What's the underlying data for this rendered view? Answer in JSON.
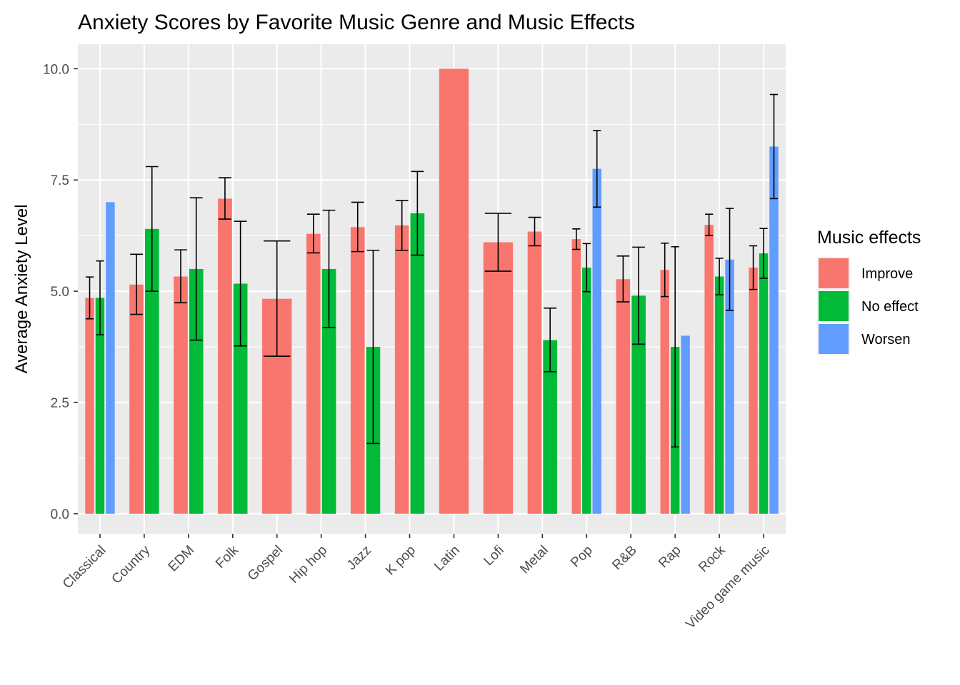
{
  "chart_data": {
    "type": "bar",
    "title": "Anxiety Scores by Favorite Music Genre and Music Effects",
    "xlabel": "",
    "ylabel": "Average Anxiety Level",
    "ylim": [
      -0.45,
      10.55
    ],
    "yticks": [
      0,
      2.5,
      5,
      7.5,
      10
    ],
    "ytick_labels": [
      "0.0",
      "2.5",
      "5.0",
      "7.5",
      "10.0"
    ],
    "grid": true,
    "legend": {
      "title": "Music effects",
      "placement": "right"
    },
    "categories": [
      "Classical",
      "Country",
      "EDM",
      "Folk",
      "Gospel",
      "Hip hop",
      "Jazz",
      "K pop",
      "Latin",
      "Lofi",
      "Metal",
      "Pop",
      "R&B",
      "Rap",
      "Rock",
      "Video game music"
    ],
    "series": [
      {
        "name": "Improve",
        "color": "#F8766D",
        "values": [
          4.85,
          5.15,
          5.33,
          7.08,
          4.83,
          6.29,
          6.44,
          6.48,
          10.0,
          6.1,
          6.34,
          6.17,
          5.27,
          5.48,
          6.49,
          5.53
        ],
        "error_low": [
          4.38,
          4.48,
          4.74,
          6.62,
          3.54,
          5.86,
          5.89,
          5.92,
          null,
          5.45,
          6.02,
          5.94,
          4.76,
          4.88,
          6.25,
          5.04
        ],
        "error_high": [
          5.32,
          5.83,
          5.93,
          7.55,
          6.13,
          6.73,
          7.0,
          7.04,
          null,
          6.75,
          6.66,
          6.4,
          5.79,
          6.08,
          6.73,
          6.02
        ]
      },
      {
        "name": "No effect",
        "color": "#00BA38",
        "values": [
          4.85,
          6.4,
          5.5,
          5.17,
          null,
          5.5,
          3.75,
          6.75,
          null,
          null,
          3.9,
          5.53,
          4.9,
          3.75,
          5.33,
          5.85
        ],
        "error_low": [
          4.02,
          5.0,
          3.9,
          3.77,
          null,
          4.18,
          1.58,
          5.81,
          null,
          null,
          3.19,
          4.99,
          3.81,
          1.5,
          4.92,
          5.29
        ],
        "error_high": [
          5.68,
          7.8,
          7.1,
          6.57,
          null,
          6.82,
          5.92,
          7.69,
          null,
          null,
          4.62,
          6.07,
          5.99,
          6.0,
          5.74,
          6.41
        ]
      },
      {
        "name": "Worsen",
        "color": "#619CFF",
        "values": [
          7.0,
          null,
          null,
          null,
          null,
          null,
          null,
          null,
          null,
          null,
          null,
          7.75,
          null,
          4.0,
          5.71,
          8.25
        ],
        "error_low": [
          null,
          null,
          null,
          null,
          null,
          null,
          null,
          null,
          null,
          null,
          null,
          6.89,
          null,
          null,
          4.57,
          7.08
        ],
        "error_high": [
          null,
          null,
          null,
          null,
          null,
          null,
          null,
          null,
          null,
          null,
          null,
          8.61,
          null,
          null,
          6.86,
          9.42
        ]
      }
    ]
  }
}
